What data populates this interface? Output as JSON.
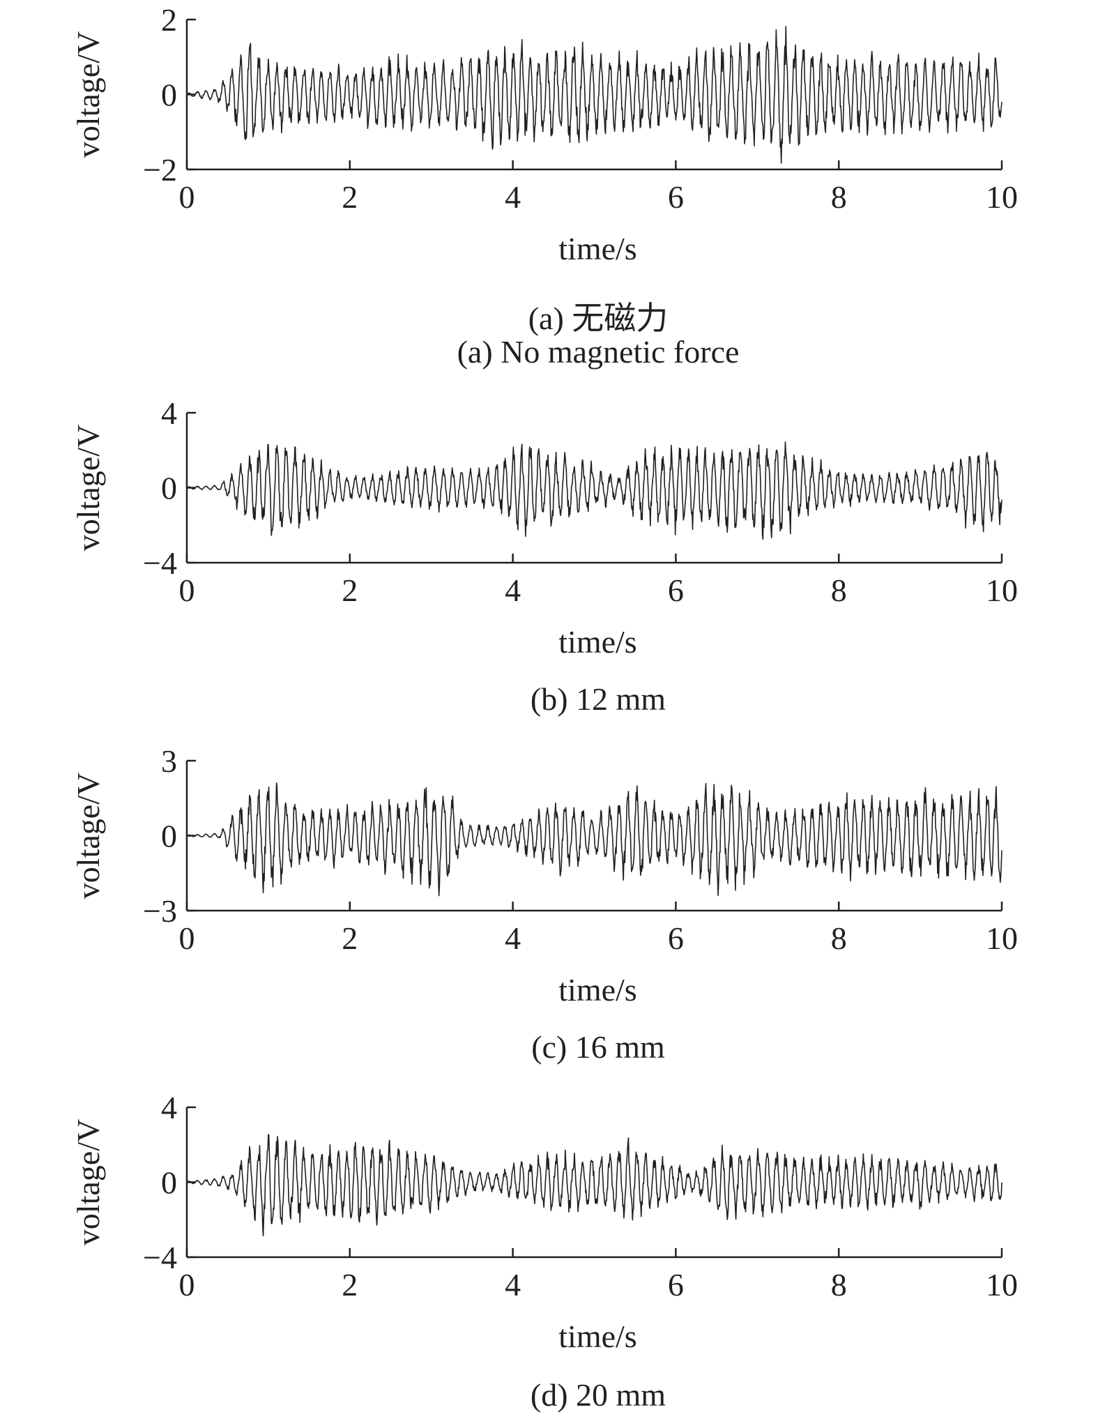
{
  "chart_data": [
    {
      "type": "line",
      "caption_cn": "(a) 无磁力",
      "caption_en": "(a) No magnetic force",
      "xlabel": "time/s",
      "ylabel": "voltage/V",
      "xlim": [
        0,
        10
      ],
      "ylim": [
        -2,
        2
      ],
      "xticks": [
        "0",
        "2",
        "4",
        "6",
        "8",
        "10"
      ],
      "yticks": [
        "2",
        "0",
        "−2"
      ],
      "grid": false,
      "envelope": {
        "t": [
          0,
          0.4,
          0.5,
          0.75,
          1.0,
          1.5,
          2.0,
          2.5,
          3.0,
          3.5,
          3.9,
          4.2,
          4.5,
          4.8,
          5.2,
          5.6,
          6.0,
          6.4,
          6.7,
          7.0,
          7.3,
          7.6,
          8.0,
          8.5,
          9.0,
          9.5,
          10.0
        ],
        "amp": [
          0.04,
          0.2,
          0.6,
          1.5,
          1.0,
          0.8,
          0.7,
          1.0,
          0.9,
          1.1,
          1.6,
          1.3,
          1.1,
          1.5,
          1.0,
          1.1,
          0.8,
          1.3,
          1.5,
          1.3,
          1.8,
          1.3,
          1.0,
          1.0,
          1.0,
          1.0,
          1.0
        ]
      }
    },
    {
      "type": "line",
      "caption_cn": "",
      "caption_en": "(b) 12 mm",
      "xlabel": "time/s",
      "ylabel": "voltage/V",
      "xlim": [
        0,
        10
      ],
      "ylim": [
        -4,
        4
      ],
      "xticks": [
        "0",
        "2",
        "4",
        "6",
        "8",
        "10"
      ],
      "yticks": [
        "4",
        "0",
        "−4"
      ],
      "grid": false,
      "envelope": {
        "t": [
          0,
          0.4,
          0.6,
          1.0,
          1.4,
          1.8,
          2.1,
          2.5,
          3.0,
          3.5,
          3.8,
          4.1,
          4.5,
          5.0,
          5.3,
          5.6,
          6.0,
          6.5,
          7.0,
          7.3,
          7.6,
          8.0,
          8.5,
          9.0,
          9.4,
          9.8,
          10.0
        ],
        "amp": [
          0.05,
          0.15,
          1.0,
          3.0,
          2.2,
          1.0,
          0.6,
          1.0,
          1.2,
          1.0,
          1.4,
          2.6,
          2.0,
          1.3,
          0.6,
          2.1,
          2.2,
          2.2,
          2.6,
          2.8,
          1.6,
          1.0,
          0.8,
          1.0,
          1.6,
          2.4,
          1.8
        ]
      }
    },
    {
      "type": "line",
      "caption_cn": "",
      "caption_en": "(c) 16 mm",
      "xlabel": "time/s",
      "ylabel": "voltage/V",
      "xlim": [
        0,
        10
      ],
      "ylim": [
        -3,
        3
      ],
      "xticks": [
        "0",
        "2",
        "4",
        "6",
        "8",
        "10"
      ],
      "yticks": [
        "3",
        "0",
        "−3"
      ],
      "grid": false,
      "envelope": {
        "t": [
          0,
          0.4,
          0.6,
          0.8,
          1.0,
          1.4,
          2.0,
          2.5,
          3.0,
          3.2,
          3.4,
          3.8,
          4.2,
          4.6,
          5.0,
          5.3,
          5.6,
          6.0,
          6.5,
          6.8,
          7.2,
          7.6,
          8.0,
          8.5,
          9.0,
          9.5,
          10.0
        ],
        "amp": [
          0.03,
          0.1,
          1.0,
          2.0,
          2.3,
          1.2,
          1.2,
          1.4,
          2.1,
          2.3,
          0.5,
          0.4,
          0.8,
          1.6,
          0.8,
          1.7,
          1.9,
          1.0,
          2.5,
          2.0,
          1.0,
          1.3,
          1.7,
          1.6,
          1.8,
          1.6,
          2.3
        ]
      }
    },
    {
      "type": "line",
      "caption_cn": "",
      "caption_en": "(d) 20 mm",
      "xlabel": "time/s",
      "ylabel": "voltage/V",
      "xlim": [
        0,
        10
      ],
      "ylim": [
        -4,
        4
      ],
      "xticks": [
        "0",
        "2",
        "4",
        "6",
        "8",
        "10"
      ],
      "yticks": [
        "4",
        "0",
        "−4"
      ],
      "grid": false,
      "envelope": {
        "t": [
          0,
          0.4,
          0.6,
          0.8,
          1.0,
          1.5,
          2.0,
          2.3,
          2.7,
          3.0,
          3.5,
          3.8,
          4.1,
          4.6,
          5.0,
          5.4,
          5.8,
          6.2,
          6.6,
          7.0,
          7.5,
          8.0,
          8.5,
          9.0,
          9.5,
          10.0
        ],
        "amp": [
          0.05,
          0.25,
          0.7,
          2.3,
          2.9,
          1.8,
          2.2,
          2.4,
          1.8,
          1.6,
          0.6,
          0.5,
          1.3,
          1.6,
          1.6,
          2.2,
          1.5,
          0.5,
          2.1,
          2.0,
          1.4,
          1.4,
          1.4,
          1.4,
          0.8,
          1.3
        ]
      }
    }
  ]
}
